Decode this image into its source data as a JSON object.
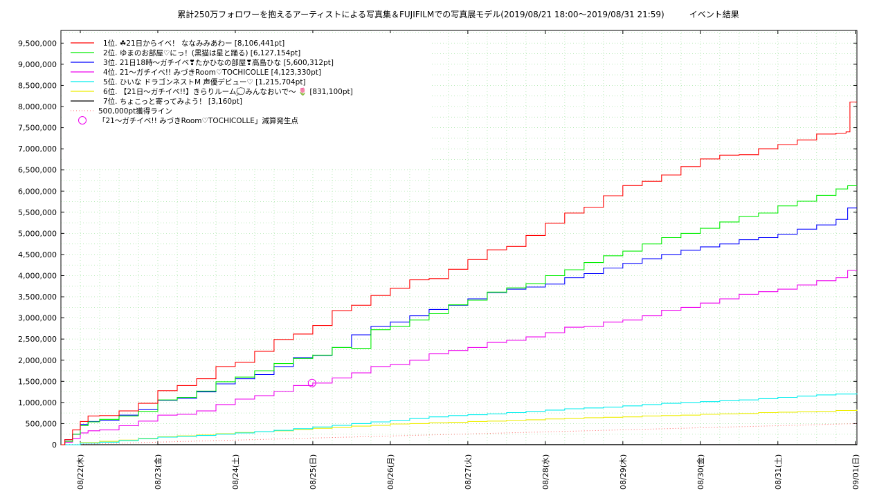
{
  "chart_data": {
    "type": "line",
    "title": "累計250万フォロワーを抱えるアーティストによる写真集＆FUJIFILMでの写真展モデル(2019/08/21 18:00～2019/08/31 21:59)　　　イベント結果",
    "x_ticks": [
      "08/22(木)",
      "08/23(金)",
      "08/24(土)",
      "08/25(日)",
      "08/26(月)",
      "08/27(火)",
      "08/28(水)",
      "08/29(木)",
      "08/30(金)",
      "08/31(土)",
      "09/01(日)"
    ],
    "y_ticks": [
      "0",
      "500,000",
      "1,000,000",
      "1,500,000",
      "2,000,000",
      "2,500,000",
      "3,000,000",
      "3,500,000",
      "4,000,000",
      "4,500,000",
      "5,000,000",
      "5,500,000",
      "6,000,000",
      "6,500,000",
      "7,000,000",
      "7,500,000",
      "8,000,000",
      "8,500,000",
      "9,000,000",
      "9,500,000"
    ],
    "ylim": [
      0,
      9800000
    ],
    "x_unit": "days since 2019-08-21 00:00",
    "xlim": [
      0.75,
      11.02
    ],
    "grid": true,
    "legend_position": "top-left",
    "series": [
      {
        "name": "1位. ☘21日からイベ！ ななみみあわー [8,106,441pt]",
        "color": "#ff0000",
        "x": [
          0.75,
          0.8,
          0.9,
          1.0,
          1.1,
          1.25,
          1.5,
          1.75,
          2.0,
          2.25,
          2.5,
          2.75,
          3.0,
          3.25,
          3.5,
          3.75,
          4.0,
          4.25,
          4.5,
          4.75,
          5.0,
          5.25,
          5.5,
          5.75,
          6.0,
          6.25,
          6.5,
          6.75,
          7.0,
          7.25,
          7.5,
          7.75,
          8.0,
          8.25,
          8.5,
          8.75,
          9.0,
          9.25,
          9.5,
          9.75,
          10.0,
          10.25,
          10.5,
          10.75,
          10.88,
          10.93,
          11.02
        ],
        "values": [
          0,
          120000,
          350000,
          550000,
          680000,
          690000,
          800000,
          980000,
          1280000,
          1400000,
          1560000,
          1850000,
          1950000,
          2210000,
          2490000,
          2620000,
          2820000,
          3170000,
          3300000,
          3530000,
          3700000,
          3900000,
          3930000,
          4150000,
          4380000,
          4610000,
          4690000,
          4950000,
          5240000,
          5480000,
          5620000,
          5890000,
          6130000,
          6230000,
          6380000,
          6580000,
          6760000,
          6850000,
          6860000,
          7000000,
          7100000,
          7210000,
          7350000,
          7370000,
          7400000,
          8106441,
          8106441
        ]
      },
      {
        "name": "2位. ゆまのお部屋♡にっ！(黒猫は星と踊る) [6,127,154pt]",
        "color": "#00ee00",
        "x": [
          0.75,
          0.8,
          0.9,
          1.0,
          1.1,
          1.25,
          1.5,
          1.75,
          2.0,
          2.25,
          2.5,
          2.75,
          3.0,
          3.25,
          3.5,
          3.75,
          4.0,
          4.25,
          4.5,
          4.75,
          5.0,
          5.25,
          5.5,
          5.75,
          6.0,
          6.25,
          6.5,
          6.75,
          7.0,
          7.25,
          7.5,
          7.75,
          8.0,
          8.25,
          8.5,
          8.75,
          9.0,
          9.25,
          9.5,
          9.75,
          10.0,
          10.25,
          10.5,
          10.75,
          10.9,
          11.02
        ],
        "values": [
          0,
          80000,
          250000,
          450000,
          540000,
          600000,
          680000,
          790000,
          1060000,
          1120000,
          1270000,
          1490000,
          1600000,
          1750000,
          1920000,
          2040000,
          2120000,
          2300000,
          2280000,
          2720000,
          2800000,
          2950000,
          3100000,
          3310000,
          3420000,
          3610000,
          3710000,
          3810000,
          4000000,
          4140000,
          4310000,
          4470000,
          4580000,
          4750000,
          4900000,
          5000000,
          5120000,
          5270000,
          5400000,
          5480000,
          5650000,
          5760000,
          5900000,
          6050000,
          6127154,
          6127154
        ]
      },
      {
        "name": "3位. 21日18時～ガチイベ❣たかひなの部屋❣高島ひな [5,600,312pt]",
        "color": "#0000ff",
        "x": [
          0.75,
          0.8,
          0.9,
          1.0,
          1.1,
          1.25,
          1.5,
          1.75,
          2.0,
          2.25,
          2.5,
          2.75,
          3.0,
          3.25,
          3.5,
          3.75,
          4.0,
          4.25,
          4.5,
          4.75,
          5.0,
          5.25,
          5.5,
          5.75,
          6.0,
          6.25,
          6.5,
          6.75,
          7.0,
          7.25,
          7.5,
          7.75,
          8.0,
          8.25,
          8.5,
          8.75,
          9.0,
          9.25,
          9.5,
          9.75,
          10.0,
          10.25,
          10.5,
          10.75,
          10.9,
          11.02
        ],
        "values": [
          0,
          120000,
          250000,
          480000,
          550000,
          580000,
          700000,
          830000,
          1050000,
          1100000,
          1250000,
          1440000,
          1560000,
          1660000,
          1850000,
          2060000,
          2110000,
          2300000,
          2600000,
          2800000,
          2900000,
          3050000,
          3200000,
          3300000,
          3450000,
          3600000,
          3680000,
          3730000,
          3800000,
          3950000,
          4050000,
          4180000,
          4290000,
          4400000,
          4500000,
          4600000,
          4680000,
          4750000,
          4850000,
          4900000,
          4980000,
          5100000,
          5200000,
          5330000,
          5600312,
          5600312
        ]
      },
      {
        "name": "4位. 21～ガチイベ!! みづきRoom♡TOCHICOLLE [4,123,330pt]",
        "color": "#ee00ee",
        "x": [
          0.75,
          0.8,
          0.9,
          1.0,
          1.1,
          1.25,
          1.5,
          1.75,
          2.0,
          2.25,
          2.5,
          2.75,
          3.0,
          3.25,
          3.5,
          3.75,
          4.0,
          4.25,
          4.5,
          4.75,
          5.0,
          5.25,
          5.5,
          5.75,
          6.0,
          6.25,
          6.5,
          6.75,
          7.0,
          7.25,
          7.5,
          7.75,
          8.0,
          8.25,
          8.5,
          8.75,
          9.0,
          9.25,
          9.5,
          9.75,
          10.0,
          10.25,
          10.5,
          10.75,
          10.9,
          11.02
        ],
        "values": [
          0,
          60000,
          150000,
          280000,
          330000,
          350000,
          450000,
          560000,
          700000,
          720000,
          800000,
          950000,
          1080000,
          1160000,
          1260000,
          1400000,
          1460000,
          1580000,
          1700000,
          1850000,
          1900000,
          2000000,
          2150000,
          2230000,
          2300000,
          2420000,
          2470000,
          2550000,
          2650000,
          2780000,
          2800000,
          2900000,
          2950000,
          3050000,
          3180000,
          3250000,
          3350000,
          3450000,
          3560000,
          3620000,
          3680000,
          3780000,
          3880000,
          3950000,
          4123330,
          4123330
        ]
      },
      {
        "name": "5位. ひいな ドラゴンネストM 声優デビュー♡ [1,215,704pt]",
        "color": "#00eeee",
        "x": [
          0.75,
          1.0,
          1.25,
          1.5,
          1.75,
          2.0,
          2.25,
          2.5,
          2.75,
          3.0,
          3.25,
          3.5,
          3.75,
          4.0,
          4.25,
          4.5,
          4.75,
          5.0,
          5.25,
          5.5,
          5.75,
          6.0,
          6.25,
          6.5,
          6.75,
          7.0,
          7.25,
          7.5,
          7.75,
          8.0,
          8.25,
          8.5,
          8.75,
          9.0,
          9.25,
          9.5,
          9.75,
          10.0,
          10.25,
          10.5,
          10.75,
          11.02
        ],
        "values": [
          0,
          40000,
          60000,
          100000,
          140000,
          180000,
          200000,
          220000,
          250000,
          280000,
          310000,
          340000,
          380000,
          420000,
          460000,
          500000,
          540000,
          580000,
          620000,
          660000,
          690000,
          710000,
          730000,
          760000,
          790000,
          820000,
          850000,
          870000,
          890000,
          920000,
          950000,
          980000,
          1000000,
          1020000,
          1040000,
          1060000,
          1090000,
          1120000,
          1150000,
          1180000,
          1200000,
          1215704
        ]
      },
      {
        "name": "6位. 【21日～ガチイベ!!】きらりルーム💭みんなおいで～ 🌷 [831,100pt]",
        "color": "#eeee00",
        "x": [
          0.75,
          1.0,
          1.25,
          1.5,
          1.75,
          2.0,
          2.25,
          2.5,
          2.75,
          3.0,
          3.25,
          3.5,
          3.75,
          4.0,
          4.25,
          4.5,
          4.75,
          5.0,
          5.25,
          5.5,
          5.75,
          6.0,
          6.25,
          6.5,
          6.75,
          7.0,
          7.25,
          7.5,
          7.75,
          8.0,
          8.25,
          8.5,
          8.75,
          9.0,
          9.25,
          9.5,
          9.75,
          10.0,
          10.25,
          10.5,
          10.75,
          11.02
        ],
        "values": [
          0,
          50000,
          80000,
          110000,
          150000,
          190000,
          210000,
          230000,
          260000,
          290000,
          310000,
          330000,
          360000,
          390000,
          410000,
          440000,
          460000,
          490000,
          500000,
          520000,
          530000,
          550000,
          560000,
          580000,
          590000,
          610000,
          620000,
          640000,
          650000,
          660000,
          680000,
          690000,
          700000,
          720000,
          730000,
          740000,
          760000,
          770000,
          780000,
          790000,
          810000,
          831100
        ]
      },
      {
        "name": "7位. ちょこっと寄ってみよう！ [3,160pt]",
        "color": "#000000",
        "x": [
          0.75,
          1.0,
          2.0,
          11.02
        ],
        "values": [
          0,
          1000,
          3160,
          3160
        ]
      }
    ],
    "reference_line": {
      "name": "500,000pt獲得ライン",
      "color": "#ff6666",
      "x": [
        0.75,
        11.02
      ],
      "values": [
        0,
        500000
      ]
    },
    "event_marker": {
      "name": "「21～ガチイベ!! みづきRoom♡TOCHICOLLE」減算発生点",
      "color": "#ee00ee",
      "x": 3.99,
      "value": 1460000
    }
  }
}
